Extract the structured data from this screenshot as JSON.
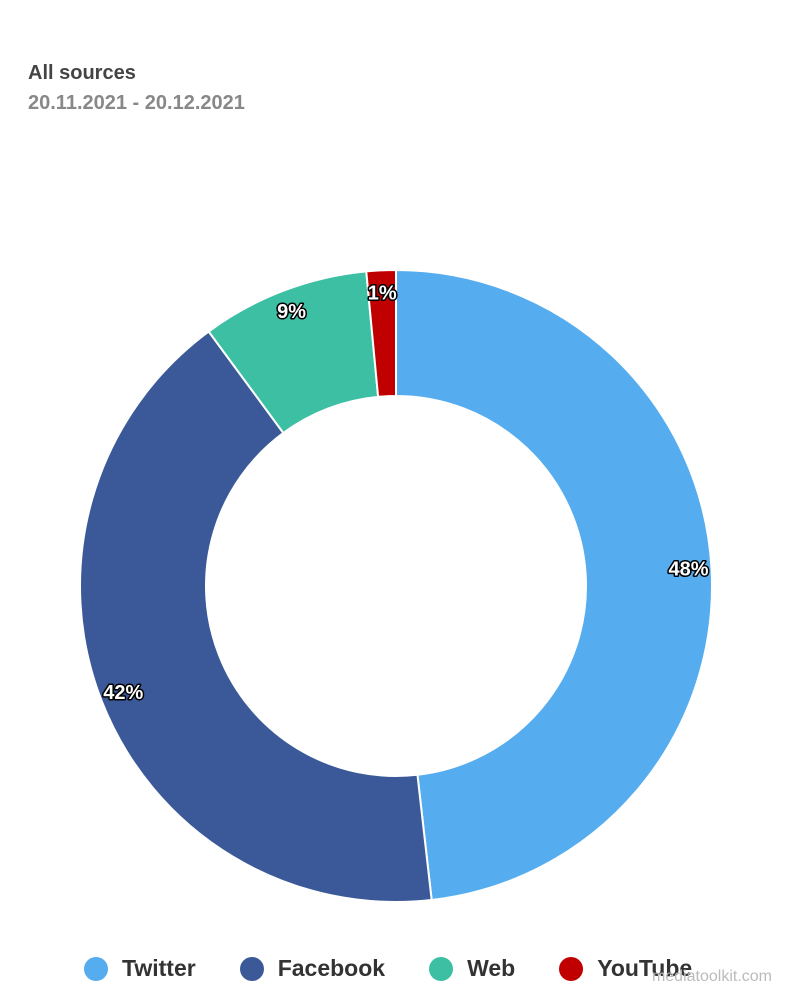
{
  "header": {
    "title": "All sources",
    "subtitle": "20.11.2021 - 20.12.2021"
  },
  "watermark": "mediatoolkit.com",
  "chart_data": {
    "type": "pie",
    "variant": "donut",
    "categories": [
      "Twitter",
      "Facebook",
      "Web",
      "YouTube"
    ],
    "values": [
      48.2,
      41.7,
      8.6,
      1.5
    ],
    "labels": [
      "48%",
      "42%",
      "9%",
      "1%"
    ],
    "colors": [
      "#55acee",
      "#3b5998",
      "#3cbfa3",
      "#c00000"
    ],
    "legend_position": "bottom"
  }
}
